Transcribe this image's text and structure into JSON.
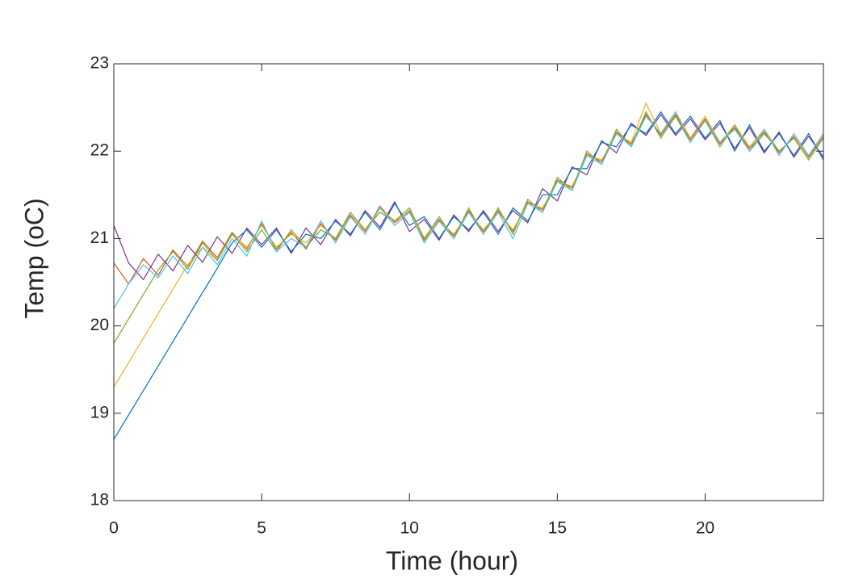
{
  "chart_data": {
    "type": "line",
    "x_label": "Time (hour)",
    "y_label": "Temp (oC)",
    "x": [
      0,
      0.5,
      1,
      1.5,
      2,
      2.5,
      3,
      3.5,
      4,
      4.5,
      5,
      5.5,
      6,
      6.5,
      7,
      7.5,
      8,
      8.5,
      9,
      9.5,
      10,
      10.5,
      11,
      11.5,
      12,
      12.5,
      13,
      13.5,
      14,
      14.5,
      15,
      15.5,
      16,
      16.5,
      17,
      17.5,
      18,
      18.5,
      19,
      19.5,
      20,
      20.5,
      21,
      21.5,
      22,
      22.5,
      23,
      23.5,
      24
    ],
    "series": [
      {
        "color": "#d95319",
        "values": [
          20.72,
          20.48,
          20.77,
          20.58,
          20.87,
          20.68,
          20.97,
          20.78,
          21.07,
          20.88,
          21.17,
          20.88,
          21.07,
          20.88,
          21.17,
          20.98,
          21.27,
          21.08,
          21.37,
          21.18,
          21.32,
          20.98,
          21.22,
          21.03,
          21.32,
          21.08,
          21.32,
          21.08,
          21.42,
          21.33,
          21.67,
          21.58,
          21.97,
          21.88,
          22.22,
          22.08,
          22.42,
          22.18,
          22.42,
          22.13,
          22.37,
          22.08,
          22.27,
          22.03,
          22.22,
          21.98,
          22.17,
          21.93,
          22.17
        ]
      },
      {
        "color": "#7e2f8e",
        "values": [
          21.15,
          20.72,
          20.53,
          20.82,
          20.63,
          20.92,
          20.73,
          21.02,
          20.83,
          21.12,
          20.93,
          21.12,
          20.83,
          21.12,
          20.93,
          21.22,
          21.03,
          21.32,
          21.13,
          21.42,
          21.08,
          21.22,
          20.98,
          21.27,
          21.08,
          21.32,
          21.08,
          21.32,
          21.18,
          21.57,
          21.43,
          21.82,
          21.73,
          22.12,
          21.98,
          22.32,
          22.18,
          22.42,
          22.18,
          22.37,
          22.13,
          22.32,
          22.03,
          22.27,
          21.98,
          22.22,
          21.93,
          22.17,
          21.93
        ]
      },
      {
        "color": "#0072bd",
        "values": [
          18.7,
          18.98,
          19.26,
          19.54,
          19.82,
          20.1,
          20.38,
          20.66,
          20.95,
          21.1,
          20.9,
          21.1,
          20.85,
          21.05,
          21.0,
          21.2,
          21.05,
          21.3,
          21.1,
          21.4,
          21.15,
          21.25,
          21.0,
          21.25,
          21.1,
          21.3,
          21.05,
          21.35,
          21.2,
          21.5,
          21.5,
          21.8,
          21.8,
          22.1,
          22.05,
          22.3,
          22.2,
          22.45,
          22.2,
          22.4,
          22.15,
          22.35,
          22.0,
          22.3,
          22.0,
          22.2,
          21.95,
          22.2,
          21.9
        ]
      },
      {
        "color": "#edb120",
        "values": [
          19.3,
          19.58,
          19.86,
          20.14,
          20.42,
          20.7,
          20.9,
          20.75,
          21.05,
          20.9,
          21.15,
          20.9,
          21.05,
          20.95,
          21.15,
          21.0,
          21.25,
          21.1,
          21.35,
          21.2,
          21.3,
          21.0,
          21.2,
          21.05,
          21.3,
          21.1,
          21.3,
          21.1,
          21.4,
          21.35,
          21.65,
          21.6,
          21.95,
          21.9,
          22.2,
          22.1,
          22.55,
          22.2,
          22.45,
          22.15,
          22.4,
          22.1,
          22.3,
          22.05,
          22.25,
          22.0,
          22.15,
          21.95,
          22.2
        ]
      },
      {
        "color": "#77ac30",
        "values": [
          19.8,
          20.08,
          20.36,
          20.64,
          20.85,
          20.65,
          20.95,
          20.75,
          21.05,
          20.85,
          21.1,
          20.85,
          21.1,
          20.9,
          21.1,
          21.0,
          21.3,
          21.1,
          21.3,
          21.2,
          21.35,
          21.0,
          21.25,
          21.0,
          21.35,
          21.05,
          21.35,
          21.05,
          21.45,
          21.3,
          21.7,
          21.55,
          22.0,
          21.85,
          22.25,
          22.05,
          22.45,
          22.15,
          22.4,
          22.1,
          22.35,
          22.05,
          22.3,
          22.0,
          22.2,
          22.0,
          22.15,
          21.9,
          22.15
        ]
      },
      {
        "color": "#4dbeee",
        "values": [
          20.2,
          20.48,
          20.7,
          20.55,
          20.8,
          20.6,
          20.9,
          20.7,
          21.0,
          20.8,
          21.2,
          20.85,
          21.0,
          20.9,
          21.2,
          20.95,
          21.25,
          21.05,
          21.35,
          21.15,
          21.3,
          20.95,
          21.2,
          21.0,
          21.3,
          21.05,
          21.3,
          21.0,
          21.4,
          21.3,
          21.65,
          21.55,
          21.95,
          21.85,
          22.2,
          22.05,
          22.4,
          22.2,
          22.45,
          22.1,
          22.35,
          22.1,
          22.25,
          22.0,
          22.25,
          21.95,
          22.2,
          21.95,
          22.2
        ]
      }
    ],
    "xlim": [
      0,
      24
    ],
    "xticks": [
      0,
      5,
      10,
      15,
      20
    ],
    "ylim": [
      18,
      23
    ],
    "yticks": [
      18,
      19,
      20,
      21,
      22,
      23
    ],
    "grid": false
  }
}
